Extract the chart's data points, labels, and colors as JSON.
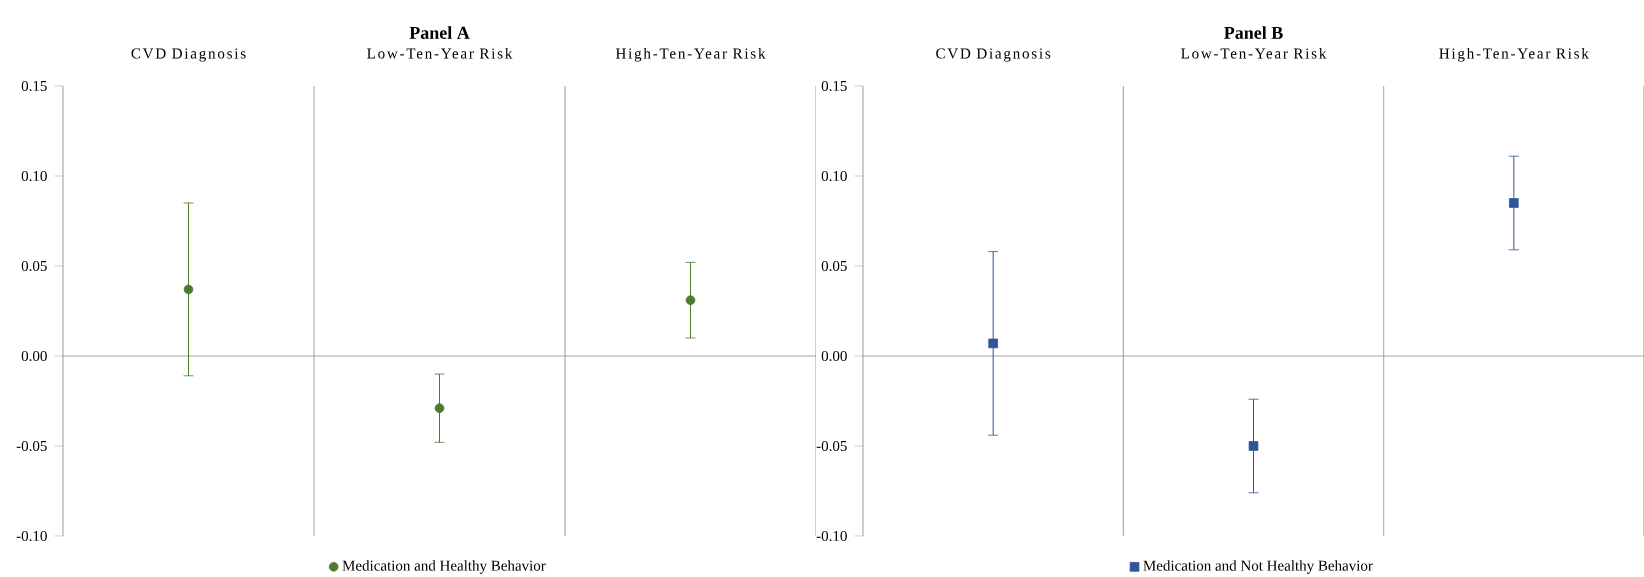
{
  "chart_data": [
    {
      "type": "scatter",
      "title": "Panel A",
      "categories": [
        "CVD Diagnosis",
        "Low-Ten-Year Risk",
        "High-Ten-Year Risk"
      ],
      "series": [
        {
          "name": "Medication and Healthy Behavior",
          "color": "#4e7a2e",
          "values": [
            0.037,
            -0.029,
            0.031
          ],
          "errors": [
            [
              -0.011,
              0.085
            ],
            [
              -0.048,
              -0.01
            ],
            [
              0.01,
              0.052
            ]
          ]
        }
      ],
      "ylim": [
        -0.1,
        0.15
      ],
      "yticks": [
        {
          "value": -0.1,
          "label": "-0.10"
        },
        {
          "value": -0.05,
          "label": "-0.05"
        },
        {
          "value": 0,
          "label": "0.00"
        },
        {
          "value": 0.05,
          "label": "0.05"
        },
        {
          "value": 0.1,
          "label": "0.10"
        },
        {
          "value": 0.15,
          "label": "0.15"
        }
      ],
      "marker": "circle",
      "legend": "bottom",
      "ref_lines": [
        {
          "axis": "y",
          "value": 0
        }
      ]
    },
    {
      "type": "scatter",
      "title": "Panel B",
      "categories": [
        "CVD Diagnosis",
        "Low-Ten-Year Risk",
        "High-Ten-Year Risk"
      ],
      "series": [
        {
          "name": "Medication and Not Healthy Behavior",
          "color": "#2f5597",
          "values": [
            0.007,
            -0.05,
            0.085
          ],
          "errors": [
            [
              -0.044,
              0.058
            ],
            [
              -0.076,
              -0.024
            ],
            [
              0.059,
              0.111
            ]
          ]
        }
      ],
      "ylim": [
        -0.1,
        0.15
      ],
      "yticks": [
        {
          "value": -0.1,
          "label": "-0.10"
        },
        {
          "value": -0.05,
          "label": "-0.05"
        },
        {
          "value": 0,
          "label": "0.00"
        },
        {
          "value": 0.05,
          "label": "0.05"
        },
        {
          "value": 0.1,
          "label": "0.10"
        },
        {
          "value": 0.15,
          "label": "0.15"
        }
      ],
      "marker": "square",
      "legend": "bottom",
      "ref_lines": [
        {
          "axis": "y",
          "value": 0
        }
      ]
    }
  ]
}
